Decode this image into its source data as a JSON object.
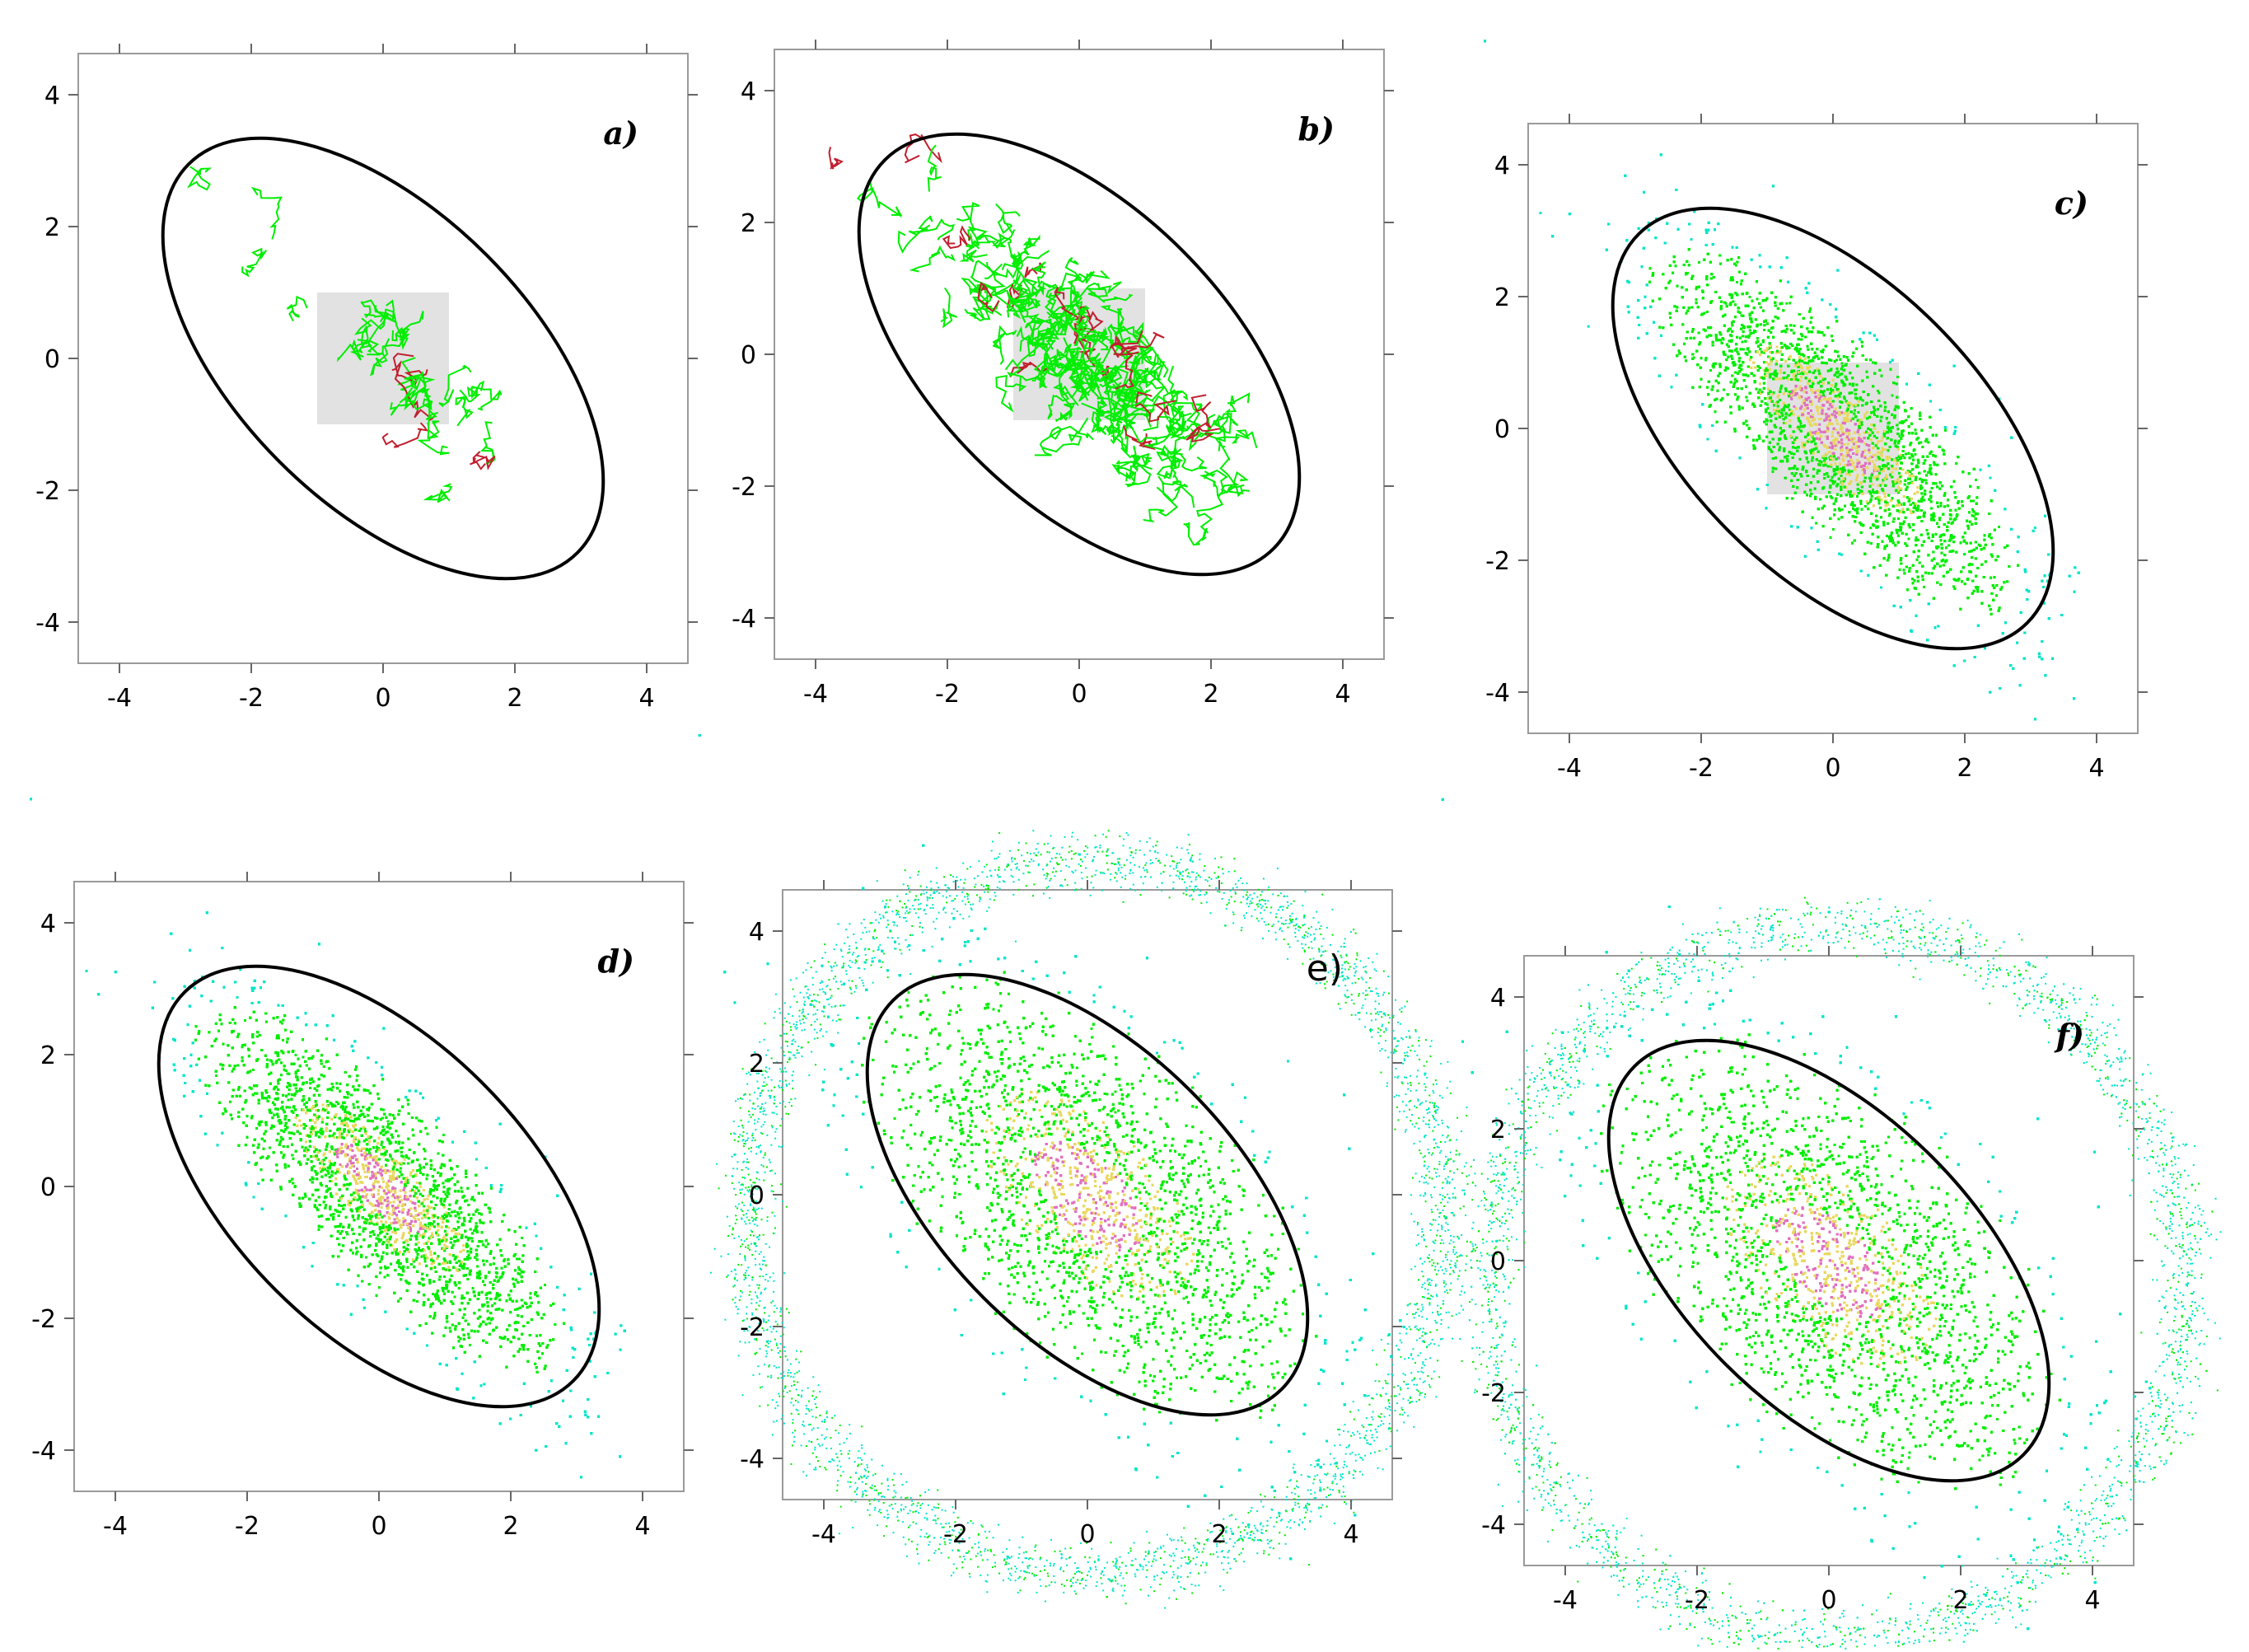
{
  "figure": {
    "background": "#ffffff"
  },
  "colors": {
    "sparse": "#00e6c8",
    "walk": "#00ee00",
    "mid": "#e8d860",
    "core": "#e070c0",
    "track": "#c02030",
    "start_square": "#e2e2e2",
    "ellipse": "#000000"
  },
  "chart_data": [
    {
      "type": "scatter",
      "panel_label": "a)",
      "label_style": "italic-bold",
      "xlim": [
        -4.6,
        4.6
      ],
      "ylim": [
        -4.6,
        4.6
      ],
      "xticks": [
        "-4",
        "-2",
        "0",
        "2",
        "4"
      ],
      "yticks": [
        "4",
        "2",
        "0",
        "-2",
        "-4"
      ],
      "start_square": {
        "x": [
          -1,
          1
        ],
        "y": [
          -1,
          1
        ]
      },
      "ellipse": {
        "center": [
          0,
          0
        ],
        "semi_major": 4.17,
        "semi_minor": 2.22,
        "angle_deg": -45
      },
      "cloud": {
        "kind": "tracks",
        "spread_major": 1.35,
        "spread_minor": 0.38,
        "count": 420,
        "ring": false
      },
      "grid": false
    },
    {
      "type": "scatter",
      "panel_label": "b)",
      "label_style": "italic-bold",
      "xlim": [
        -4.6,
        4.6
      ],
      "ylim": [
        -4.6,
        4.6
      ],
      "xticks": [
        "-4",
        "-2",
        "0",
        "2",
        "4"
      ],
      "yticks": [
        "4",
        "2",
        "0",
        "-2",
        "-4"
      ],
      "start_square": {
        "x": [
          -1,
          1
        ],
        "y": [
          -1,
          1
        ]
      },
      "ellipse": {
        "center": [
          0,
          0
        ],
        "semi_major": 4.17,
        "semi_minor": 2.22,
        "angle_deg": -45
      },
      "cloud": {
        "kind": "tracks",
        "spread_major": 1.45,
        "spread_minor": 0.4,
        "count": 2200,
        "ring": false
      },
      "grid": false
    },
    {
      "type": "scatter",
      "panel_label": "c)",
      "label_style": "italic-bold",
      "xlim": [
        -4.6,
        4.6
      ],
      "ylim": [
        -4.6,
        4.6
      ],
      "xticks": [
        "-4",
        "-2",
        "0",
        "2",
        "4"
      ],
      "yticks": [
        "4",
        "2",
        "0",
        "-2",
        "-4"
      ],
      "start_square": {
        "x": [
          -1,
          1
        ],
        "y": [
          -1,
          1
        ]
      },
      "ellipse": {
        "center": [
          0,
          0
        ],
        "semi_major": 4.17,
        "semi_minor": 2.22,
        "angle_deg": -45
      },
      "cloud": {
        "kind": "dense",
        "spread_major": 1.65,
        "spread_minor": 0.55,
        "count": 11000,
        "ring": false
      },
      "grid": false
    },
    {
      "type": "scatter",
      "panel_label": "d)",
      "label_style": "italic-bold",
      "xlim": [
        -4.6,
        4.6
      ],
      "ylim": [
        -4.6,
        4.6
      ],
      "xticks": [
        "-4",
        "-2",
        "0",
        "2",
        "4"
      ],
      "yticks": [
        "4",
        "2",
        "0",
        "-2",
        "-4"
      ],
      "start_square": null,
      "ellipse": {
        "center": [
          0,
          0
        ],
        "semi_major": 4.17,
        "semi_minor": 2.22,
        "angle_deg": -45
      },
      "cloud": {
        "kind": "dense",
        "spread_major": 1.65,
        "spread_minor": 0.55,
        "count": 11000,
        "ring": false
      },
      "grid": false
    },
    {
      "type": "scatter",
      "panel_label": "e)",
      "label_style": "plain",
      "xlim": [
        -4.6,
        4.6
      ],
      "ylim": [
        -4.6,
        4.6
      ],
      "xticks": [
        "-4",
        "-2",
        "0",
        "2",
        "4"
      ],
      "yticks": [
        "4",
        "2",
        "0",
        "-2",
        "-4"
      ],
      "start_square": null,
      "ellipse": {
        "center": [
          0,
          0
        ],
        "semi_major": 4.17,
        "semi_minor": 2.22,
        "angle_deg": -45
      },
      "cloud": {
        "kind": "dense",
        "spread_major": 1.9,
        "spread_minor": 1.0,
        "count": 13000,
        "ring": true,
        "ring_radius": 5.4,
        "ring_count": 3500
      },
      "grid": false
    },
    {
      "type": "scatter",
      "panel_label": "f)",
      "label_style": "italic-bold",
      "xlim": [
        -4.6,
        4.6
      ],
      "ylim": [
        -4.6,
        4.6
      ],
      "xticks": [
        "-4",
        "-2",
        "0",
        "2",
        "4"
      ],
      "yticks": [
        "4",
        "2",
        "0",
        "-2",
        "-4"
      ],
      "start_square": null,
      "ellipse": {
        "center": [
          0,
          0
        ],
        "semi_major": 4.17,
        "semi_minor": 2.22,
        "angle_deg": -45
      },
      "cloud": {
        "kind": "dense",
        "spread_major": 1.9,
        "spread_minor": 1.05,
        "count": 13000,
        "ring": true,
        "ring_radius": 5.4,
        "ring_count": 3800
      },
      "grid": false
    }
  ]
}
